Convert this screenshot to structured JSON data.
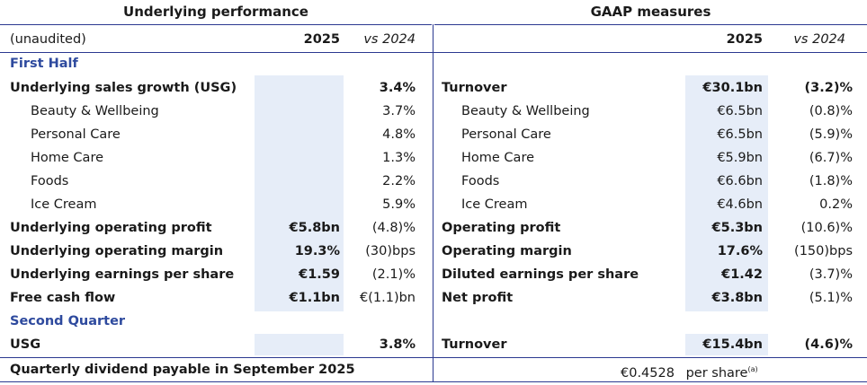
{
  "headers": {
    "left": "Underlying performance",
    "right": "GAAP measures"
  },
  "col_heads": {
    "unaudited": "(unaudited)",
    "year_left": "2025",
    "vs_left": "vs 2024",
    "year_right": "2025",
    "vs_right": "vs 2024"
  },
  "sections": {
    "first_half": "First Half",
    "second_quarter": "Second Quarter"
  },
  "first_half_rows": [
    {
      "left_label": "Underlying sales growth (USG)",
      "left_val": "",
      "left_vs": "3.4%",
      "right_label": "Turnover",
      "right_val": "€30.1bn",
      "right_vs": "(3.2)%"
    },
    {
      "left_label": "Beauty & Wellbeing",
      "left_val": "",
      "left_vs": "3.7%",
      "right_label": "Beauty & Wellbeing",
      "right_val": "€6.5bn",
      "right_vs": "(0.8)%"
    },
    {
      "left_label": "Personal Care",
      "left_val": "",
      "left_vs": "4.8%",
      "right_label": "Personal Care",
      "right_val": "€6.5bn",
      "right_vs": "(5.9)%"
    },
    {
      "left_label": "Home Care",
      "left_val": "",
      "left_vs": "1.3%",
      "right_label": "Home Care",
      "right_val": "€5.9bn",
      "right_vs": "(6.7)%"
    },
    {
      "left_label": "Foods",
      "left_val": "",
      "left_vs": "2.2%",
      "right_label": "Foods",
      "right_val": "€6.6bn",
      "right_vs": "(1.8)%"
    },
    {
      "left_label": "Ice Cream",
      "left_val": "",
      "left_vs": "5.9%",
      "right_label": "Ice Cream",
      "right_val": "€4.6bn",
      "right_vs": "0.2%"
    },
    {
      "left_label": "Underlying operating profit",
      "left_val": "€5.8bn",
      "left_vs": "(4.8)%",
      "right_label": "Operating profit",
      "right_val": "€5.3bn",
      "right_vs": "(10.6)%"
    },
    {
      "left_label": "Underlying operating margin",
      "left_val": "19.3%",
      "left_vs": "(30)bps",
      "right_label": "Operating margin",
      "right_val": "17.6%",
      "right_vs": "(150)bps"
    },
    {
      "left_label": "Underlying earnings per share",
      "left_val": "€1.59",
      "left_vs": "(2.1)%",
      "right_label": "Diluted earnings per share",
      "right_val": "€1.42",
      "right_vs": "(3.7)%"
    },
    {
      "left_label": "Free cash flow",
      "left_val": "€1.1bn",
      "left_vs": "€(1.1)bn",
      "right_label": "Net profit",
      "right_val": "€3.8bn",
      "right_vs": "(5.1)%"
    }
  ],
  "second_quarter_row": {
    "left_label": "USG",
    "left_val": "",
    "left_vs": "3.8%",
    "right_label": "Turnover",
    "right_val": "€15.4bn",
    "right_vs": "(4.6)%"
  },
  "dividend": {
    "label": "Quarterly dividend payable in September 2025",
    "amount": "€0.4528",
    "per_share": "per share",
    "footnote": "(a)"
  },
  "colors": {
    "rule": "#2b3990",
    "section_text": "#2e4a9e",
    "shade": "#e6edf8"
  }
}
